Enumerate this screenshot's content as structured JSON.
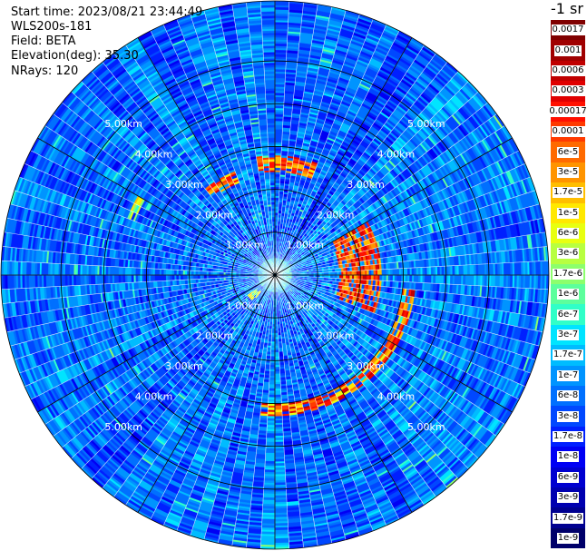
{
  "info": {
    "start_time": "Start time: 2023/08/21 23:44:49",
    "instrument": "WLS200s-181",
    "field": "Field: BETA",
    "elevation": "Elevation(deg): 35.30",
    "nrays": "NRays: 120"
  },
  "colorbar": {
    "title": "-1 sr",
    "labels": [
      "0.0017",
      "0.001",
      "0.0006",
      "0.0003",
      "0.00017",
      "0.0001",
      "6e-5",
      "3e-5",
      "1.7e-5",
      "1e-5",
      "6e-6",
      "3e-6",
      "1.7e-6",
      "1e-6",
      "6e-7",
      "3e-7",
      "1.7e-7",
      "1e-7",
      "6e-8",
      "3e-8",
      "1.7e-8",
      "1e-8",
      "6e-9",
      "3e-9",
      "1.7e-9",
      "1e-9"
    ],
    "colors": [
      "#800000",
      "#a00000",
      "#c00000",
      "#e00000",
      "#ff1000",
      "#ff3a00",
      "#ff6a00",
      "#ff9400",
      "#ffbe00",
      "#ffe800",
      "#e8ff10",
      "#b8ff40",
      "#8cff6c",
      "#5cff9c",
      "#30ffc8",
      "#00e4ff",
      "#00bcff",
      "#0094ff",
      "#0070ff",
      "#0048ff",
      "#0020ff",
      "#0000f4",
      "#0000d0",
      "#0000b0",
      "#000090",
      "#00006a"
    ]
  },
  "chart_data": {
    "type": "heatmap",
    "projection": "polar (PPI scan)",
    "field": "BETA",
    "units": "sr^-1",
    "nrays": 120,
    "elevation_deg": 35.3,
    "range_rings_km": [
      1.0,
      2.0,
      3.0,
      4.0,
      5.0
    ],
    "range_ring_labels": [
      "1.00km",
      "2.00km",
      "3.00km",
      "4.00km",
      "5.00km"
    ],
    "max_range_km": 6.4,
    "background_level_index": 18,
    "high_backscatter_features": [
      {
        "azimuth_range_deg": [
          95,
          185
        ],
        "range_km": [
          3.0,
          3.3
        ],
        "level_index_range": [
          2,
          10
        ]
      },
      {
        "azimuth_range_deg": [
          60,
          110
        ],
        "range_km": [
          1.5,
          2.5
        ],
        "level_index_range": [
          2,
          8
        ]
      },
      {
        "azimuth_range_deg": [
          -10,
          20
        ],
        "range_km": [
          2.4,
          2.8
        ],
        "level_index_range": [
          3,
          9
        ]
      },
      {
        "azimuth_range_deg": [
          -40,
          -20
        ],
        "range_km": [
          2.3,
          2.6
        ],
        "level_index_range": [
          3,
          9
        ]
      },
      {
        "azimuth_range_deg": [
          220,
          235
        ],
        "range_km": [
          0.5,
          0.8
        ],
        "level_index_range": [
          8,
          14
        ]
      },
      {
        "azimuth_range_deg": [
          290,
          300
        ],
        "range_km": [
          3.5,
          3.7
        ],
        "level_index_range": [
          8,
          14
        ]
      }
    ]
  }
}
